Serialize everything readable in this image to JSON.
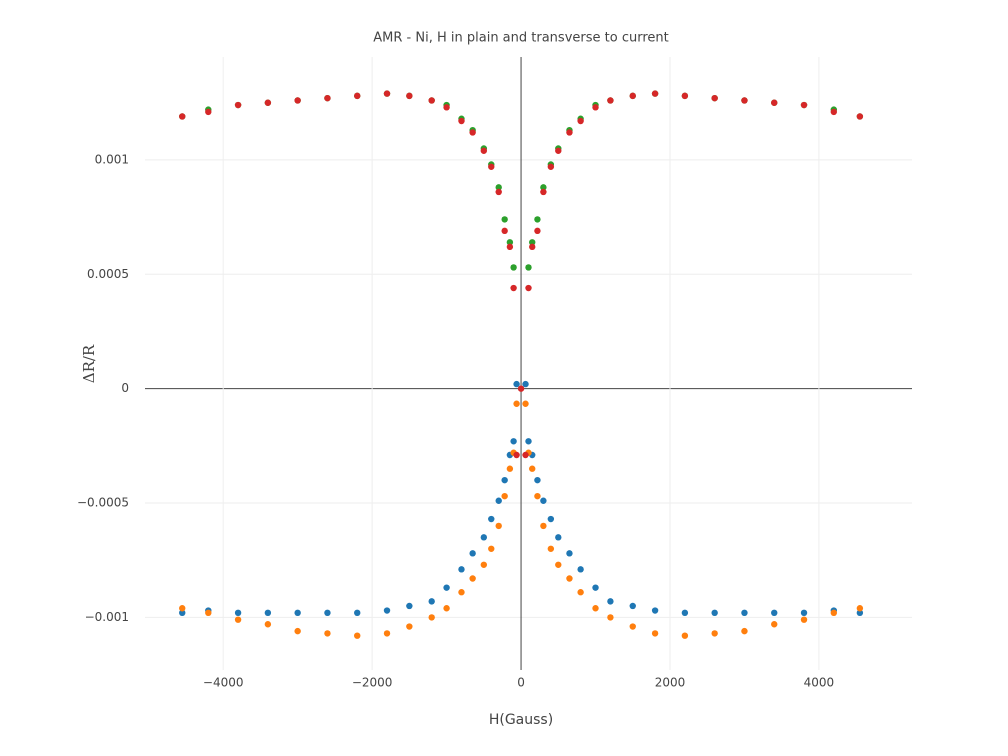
{
  "chart_data": {
    "type": "scatter",
    "title": "AMR - Ni, H in plain and transverse to current",
    "x_label": "H(Gauss)",
    "y_label": "ΔR/R",
    "x": [
      -4550,
      -4200,
      -3800,
      -3400,
      -3000,
      -2600,
      -2200,
      -1800,
      -1500,
      -1200,
      -1000,
      -800,
      -650,
      -500,
      -400,
      -300,
      -220,
      -150,
      -100,
      -60,
      0,
      60,
      100,
      150,
      220,
      300,
      400,
      500,
      650,
      800,
      1000,
      1200,
      1500,
      1800,
      2200,
      2600,
      3000,
      3400,
      3800,
      4200,
      4550
    ],
    "series": [
      {
        "color": "#1f77b4",
        "values": [
          -0.00098,
          -0.00097,
          -0.00098,
          -0.00098,
          -0.00098,
          -0.00098,
          -0.00098,
          -0.00097,
          -0.00095,
          -0.00093,
          -0.00087,
          -0.00079,
          -0.00072,
          -0.00065,
          -0.00057,
          -0.00049,
          -0.0004,
          -0.00029,
          -0.00023,
          2e-05,
          null,
          2e-05,
          -0.00023,
          -0.00029,
          -0.0004,
          -0.00049,
          -0.00057,
          -0.00065,
          -0.00072,
          -0.00079,
          -0.00087,
          -0.00093,
          -0.00095,
          -0.00097,
          -0.00098,
          -0.00098,
          -0.00098,
          -0.00098,
          -0.00098,
          -0.00097,
          -0.00098
        ]
      },
      {
        "color": "#ff7f0e",
        "values": [
          -0.00096,
          -0.00098,
          -0.00101,
          -0.00103,
          -0.00106,
          -0.00107,
          -0.00108,
          -0.00107,
          -0.00104,
          -0.001,
          -0.00096,
          -0.00089,
          -0.00083,
          -0.00077,
          -0.0007,
          -0.0006,
          -0.00047,
          -0.00035,
          -0.00028,
          -6.6e-05,
          null,
          -6.6e-05,
          -0.00028,
          -0.00035,
          -0.00047,
          -0.0006,
          -0.0007,
          -0.00077,
          -0.00083,
          -0.00089,
          -0.00096,
          -0.001,
          -0.00104,
          -0.00107,
          -0.00108,
          -0.00107,
          -0.00106,
          -0.00103,
          -0.00101,
          -0.00098,
          -0.00096
        ]
      },
      {
        "color": "#2ca02c",
        "values": [
          0.00119,
          0.00122,
          0.00124,
          0.00125,
          0.00126,
          0.00127,
          0.00128,
          0.00129,
          0.00128,
          0.00126,
          0.00124,
          0.00118,
          0.00113,
          0.00105,
          0.00098,
          0.00088,
          0.00074,
          0.00064,
          0.00053,
          null,
          null,
          null,
          0.00053,
          0.00064,
          0.00074,
          0.00088,
          0.00098,
          0.00105,
          0.00113,
          0.00118,
          0.00124,
          0.00126,
          0.00128,
          0.00129,
          0.00128,
          0.00127,
          0.00126,
          0.00125,
          0.00124,
          0.00122,
          0.00119
        ]
      },
      {
        "color": "#d62728",
        "values": [
          0.00119,
          0.00121,
          0.00124,
          0.00125,
          0.00126,
          0.00127,
          0.00128,
          0.00129,
          0.00128,
          0.00126,
          0.00123,
          0.00117,
          0.00112,
          0.00104,
          0.00097,
          0.00086,
          0.00069,
          0.00062,
          0.00044,
          -0.00029,
          0,
          -0.00029,
          0.00044,
          0.00062,
          0.00069,
          0.00086,
          0.00097,
          0.00104,
          0.00112,
          0.00117,
          0.00123,
          0.00126,
          0.00128,
          0.00129,
          0.00128,
          0.00127,
          0.00126,
          0.00125,
          0.00124,
          0.00121,
          0.00119
        ]
      }
    ],
    "xlim": [
      -5050,
      5250
    ],
    "xticks": [
      {
        "value": -4000,
        "label": "−4000"
      },
      {
        "value": -2000,
        "label": "−2000"
      },
      0,
      2000,
      4000
    ],
    "ylim": [
      -0.00123,
      0.00145
    ],
    "yticks": [
      {
        "value": -0.001,
        "label": "−0.001"
      },
      {
        "value": -0.0005,
        "label": "−0.0005"
      },
      0,
      0.0005,
      0.001
    ],
    "grid": true
  }
}
